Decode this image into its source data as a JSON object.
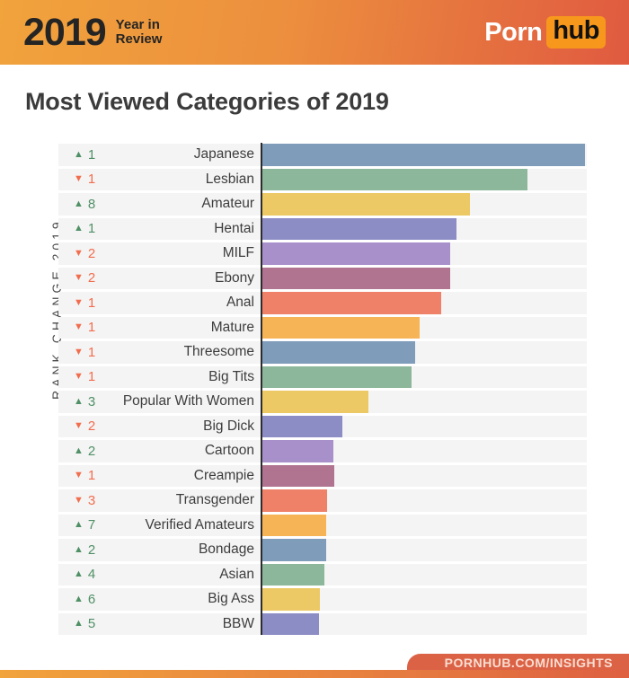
{
  "header": {
    "year": "2019",
    "subtitle_line1": "Year in",
    "subtitle_line2": "Review",
    "logo_part1": "Porn",
    "logo_part2": "hub"
  },
  "page_title": "Most Viewed Categories of 2019",
  "chart": {
    "axis_label": "RANK CHANGE 2019",
    "indicator_glyphs": {
      "up": "▲",
      "down": "▼"
    },
    "indicator_colors": {
      "up": "#4f9066",
      "down": "#f26d4e"
    }
  },
  "chart_data": {
    "type": "bar",
    "orientation": "horizontal",
    "title": "Most Viewed Categories of 2019",
    "xlabel": "",
    "ylabel": "RANK CHANGE 2019",
    "note": "No numeric axis shown; values are bar lengths as percent of plot width",
    "categories": [
      "Japanese",
      "Lesbian",
      "Amateur",
      "Hentai",
      "MILF",
      "Ebony",
      "Anal",
      "Mature",
      "Threesome",
      "Big Tits",
      "Popular With Women",
      "Big Dick",
      "Cartoon",
      "Creampie",
      "Transgender",
      "Verified Amateurs",
      "Bondage",
      "Asian",
      "Big Ass",
      "BBW"
    ],
    "values": [
      99.4,
      81.8,
      64.1,
      59.9,
      58.0,
      58.0,
      55.2,
      48.6,
      47.0,
      45.9,
      32.6,
      24.6,
      21.8,
      22.1,
      19.9,
      19.6,
      19.6,
      19.1,
      17.7,
      17.4
    ],
    "rank_changes": [
      {
        "direction": "up",
        "amount": 1
      },
      {
        "direction": "down",
        "amount": 1
      },
      {
        "direction": "up",
        "amount": 8
      },
      {
        "direction": "up",
        "amount": 1
      },
      {
        "direction": "down",
        "amount": 2
      },
      {
        "direction": "down",
        "amount": 2
      },
      {
        "direction": "down",
        "amount": 1
      },
      {
        "direction": "down",
        "amount": 1
      },
      {
        "direction": "down",
        "amount": 1
      },
      {
        "direction": "down",
        "amount": 1
      },
      {
        "direction": "up",
        "amount": 3
      },
      {
        "direction": "down",
        "amount": 2
      },
      {
        "direction": "up",
        "amount": 2
      },
      {
        "direction": "down",
        "amount": 1
      },
      {
        "direction": "down",
        "amount": 3
      },
      {
        "direction": "up",
        "amount": 7
      },
      {
        "direction": "up",
        "amount": 2
      },
      {
        "direction": "up",
        "amount": 4
      },
      {
        "direction": "up",
        "amount": 6
      },
      {
        "direction": "up",
        "amount": 5
      }
    ],
    "bar_colors": [
      "#7f9cba",
      "#8db79b",
      "#ecc964",
      "#8d8dc5",
      "#a890cb",
      "#b07390",
      "#ef8168",
      "#f7b456"
    ],
    "legend": null,
    "grid": false
  },
  "footer": {
    "link_label": "PORNHUB.COM/INSIGHTS"
  }
}
